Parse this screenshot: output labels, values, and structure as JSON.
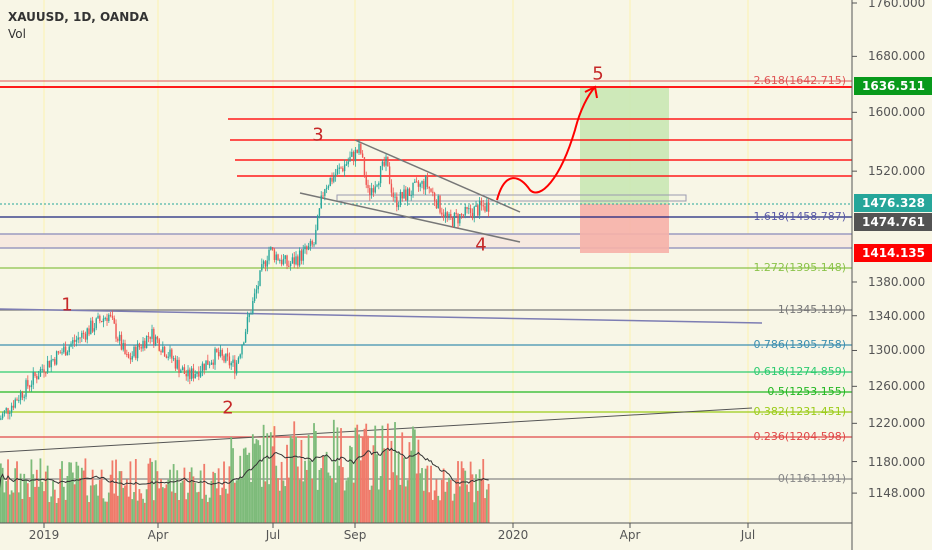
{
  "header": {
    "symbol": "XAUUSD, 1D, OANDA",
    "indicator": "Vol"
  },
  "price_axis": {
    "scale": "log",
    "ticks": [
      "1760.000",
      "1680.000",
      "1600.000",
      "1520.000",
      "1380.000",
      "1340.000",
      "1300.000",
      "1260.000",
      "1220.000",
      "1180.000",
      "1148.000"
    ]
  },
  "time_axis": {
    "ticks": [
      "2019",
      "Apr",
      "Jul",
      "Sep",
      "2020",
      "Apr",
      "Jul"
    ]
  },
  "price_tags": [
    {
      "value": "1636.511",
      "color": "#089a1b"
    },
    {
      "value": "1476.328",
      "color": "#26a69a"
    },
    {
      "value": "1474.761",
      "color": "#535353"
    },
    {
      "value": "1414.135",
      "color": "#ff0000"
    }
  ],
  "fib_levels": [
    {
      "label": "2.618(1642.715)",
      "color": "#e05555"
    },
    {
      "label": "1.618(1458.787)",
      "color": "#5a5aa8"
    },
    {
      "label": "1.272(1395.148)",
      "color": "#8bc34a"
    },
    {
      "label": "1(1345.119)",
      "color": "#787878"
    },
    {
      "label": "0.786(1305.758)",
      "color": "#3d8fb0"
    },
    {
      "label": "0.618(1274.859)",
      "color": "#2ecc71"
    },
    {
      "label": "0.5(1253.155)",
      "color": "#22b822"
    },
    {
      "label": "0.382(1231.451)",
      "color": "#9ccc1a"
    },
    {
      "label": "0.236(1204.598)",
      "color": "#e04848"
    },
    {
      "label": "0(1161.191)",
      "color": "#888888"
    }
  ],
  "wave_labels": [
    "1",
    "2",
    "3",
    "4",
    "5"
  ],
  "colors": {
    "up": "#26a69a",
    "down": "#ef5350",
    "vol_up": "#7dbb7a",
    "vol_down": "#f07a6a",
    "background": "#f8f6e6"
  },
  "chart_data": {
    "type": "candlestick",
    "symbol": "XAUUSD",
    "timeframe": "1D",
    "close_path": [
      [
        "2018-11-27",
        1224
      ],
      [
        "2019-01-01",
        1282
      ],
      [
        "2019-02-20",
        1342
      ],
      [
        "2019-03-07",
        1288
      ],
      [
        "2019-03-25",
        1320
      ],
      [
        "2019-04-23",
        1270
      ],
      [
        "2019-05-15",
        1295
      ],
      [
        "2019-05-30",
        1282
      ],
      [
        "2019-06-20",
        1395
      ],
      [
        "2019-06-25",
        1420
      ],
      [
        "2019-07-10",
        1400
      ],
      [
        "2019-07-30",
        1425
      ],
      [
        "2019-08-07",
        1500
      ],
      [
        "2019-09-04",
        1550
      ],
      [
        "2019-09-10",
        1490
      ],
      [
        "2019-09-24",
        1530
      ],
      [
        "2019-10-01",
        1480
      ],
      [
        "2019-10-25",
        1505
      ],
      [
        "2019-11-12",
        1455
      ],
      [
        "2019-12-13",
        1476
      ]
    ]
  }
}
